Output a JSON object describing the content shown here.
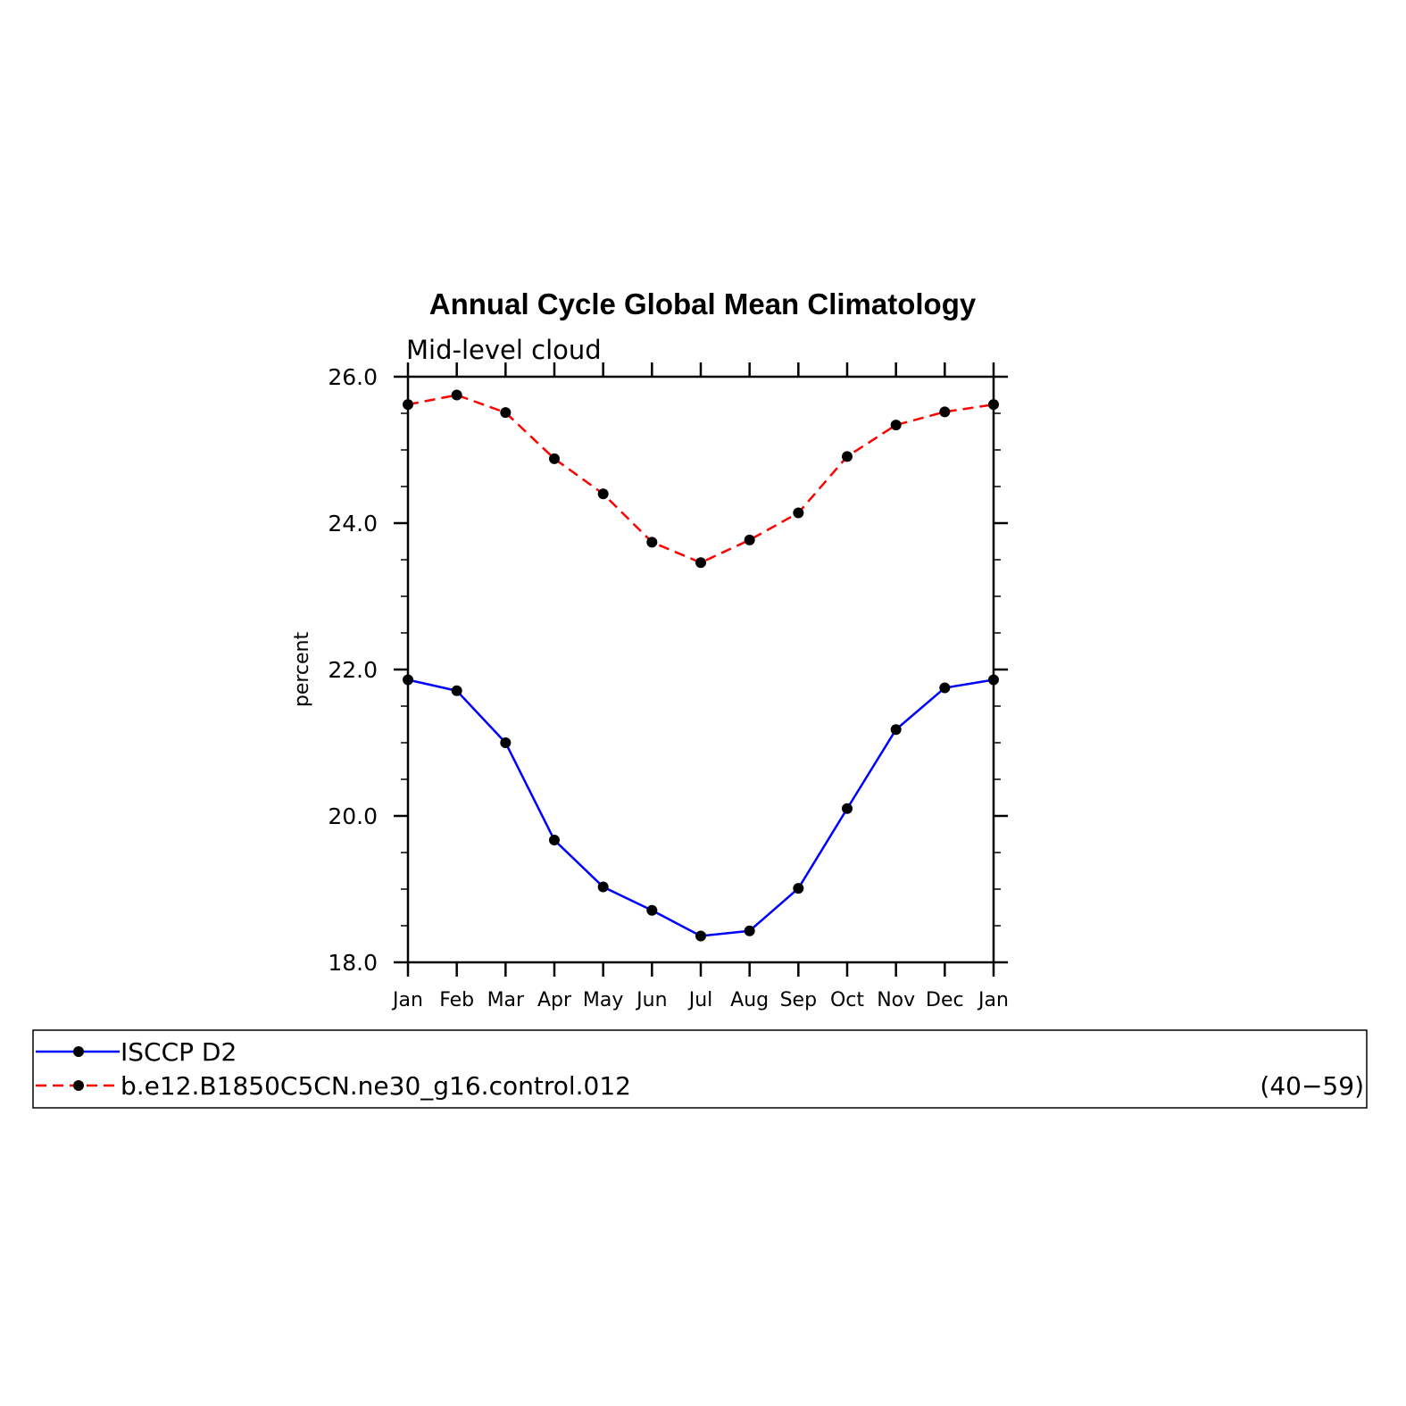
{
  "chart_data": {
    "type": "line",
    "title": "Annual Cycle Global Mean Climatology",
    "subtitle": "Mid-level cloud",
    "ylabel": "percent",
    "xlabel": "",
    "categories": [
      "Jan",
      "Feb",
      "Mar",
      "Apr",
      "May",
      "Jun",
      "Jul",
      "Aug",
      "Sep",
      "Oct",
      "Nov",
      "Dec",
      "Jan"
    ],
    "ylim": [
      18.0,
      26.0
    ],
    "yticks": [
      "18.0",
      "20.0",
      "22.0",
      "24.0",
      "26.0"
    ],
    "grid": false,
    "legend_position": "bottom",
    "legend_note": "(40−59)",
    "series": [
      {
        "name": "ISCCP D2",
        "color": "#0000ff",
        "dash": "solid",
        "marker": "circle",
        "values": [
          21.86,
          21.71,
          21.0,
          19.67,
          19.03,
          18.71,
          18.36,
          18.43,
          19.01,
          20.1,
          21.18,
          21.75,
          21.86
        ]
      },
      {
        "name": "b.e12.B1850C5CN.ne30_g16.control.012",
        "color": "#ff0000",
        "dash": "dashed",
        "marker": "circle",
        "values": [
          25.62,
          25.75,
          25.51,
          24.88,
          24.4,
          23.74,
          23.46,
          23.77,
          24.14,
          24.91,
          25.34,
          25.52,
          25.62
        ]
      }
    ]
  }
}
